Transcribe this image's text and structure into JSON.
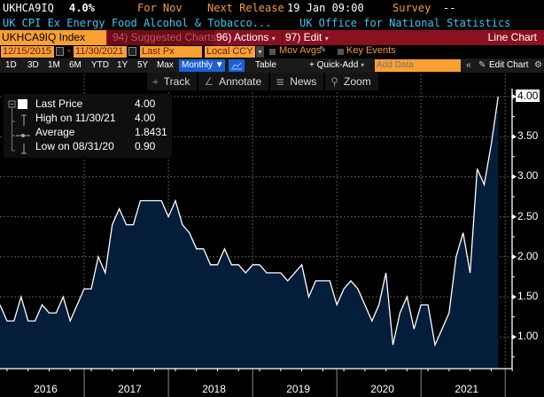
{
  "header": {
    "ticker": "UKHCA9IQ",
    "last_value": "4.0%",
    "period": "For Nov",
    "next_release_label": "Next Release",
    "next_release_value": "19 Jan 09:00",
    "survey_label": "Survey",
    "survey_value": "--",
    "description": "UK CPI Ex Energy Food Alcohol & Tobacco...",
    "source": "UK Office for National Statistics"
  },
  "menubar": {
    "security": "UKHCA9IQ Index",
    "suggested": "94) Suggested Charts",
    "actions": "96) Actions",
    "edit": "97) Edit",
    "chart_type": "Line Chart"
  },
  "settings": {
    "start_date": "12/15/2015",
    "dash": "-",
    "end_date": "11/30/2021",
    "field": "Last Px",
    "currency": "Local CCY",
    "mov_avgs": "Mov Avgs",
    "key_events": "Key Events"
  },
  "range_bar": {
    "ranges": [
      "1D",
      "3D",
      "1M",
      "6M",
      "YTD",
      "1Y",
      "5Y",
      "Max"
    ],
    "frequency": "Monthly",
    "table": "Table",
    "quick_add": "+ Quick-Add",
    "add_data_placeholder": "Add Data",
    "edit_chart": "Edit Chart"
  },
  "tools": {
    "track": "Track",
    "annotate": "Annotate",
    "news": "News",
    "zoom": "Zoom"
  },
  "legend": {
    "last_price_label": "Last Price",
    "last_price_value": "4.00",
    "high_label": "High on 11/30/21",
    "high_value": "4.00",
    "average_label": "Average",
    "average_value": "1.8431",
    "low_label": "Low on 08/31/20",
    "low_value": "0.90"
  },
  "colors": {
    "area_fill": "#031d3a",
    "line": "#ffffff",
    "accent_orange": "#f8a032",
    "menu_red": "#8b1020",
    "monthly_blue": "#1f5fd6"
  },
  "chart_data": {
    "type": "area",
    "title": "UK CPI Ex Energy Food Alcohol & Tobacco",
    "x_label": "",
    "y_label": "",
    "x_start": "2015-12",
    "x_end": "2021-11",
    "frequency": "monthly",
    "x_tick_labels": [
      "2016",
      "2017",
      "2018",
      "2019",
      "2020",
      "2021"
    ],
    "y_tick_labels": [
      "1.00",
      "1.50",
      "2.00",
      "2.50",
      "3.00",
      "3.50",
      "4.00"
    ],
    "ylim": [
      0.7,
      4.15
    ],
    "grid": true,
    "legend_position": "top-left",
    "series": [
      {
        "name": "Last Price",
        "values": [
          1.4,
          1.2,
          1.2,
          1.5,
          1.2,
          1.2,
          1.4,
          1.3,
          1.3,
          1.5,
          1.2,
          1.4,
          1.6,
          1.6,
          2.0,
          1.8,
          2.4,
          2.6,
          2.4,
          2.4,
          2.7,
          2.7,
          2.7,
          2.7,
          2.5,
          2.7,
          2.4,
          2.3,
          2.1,
          2.1,
          1.9,
          1.9,
          2.1,
          1.9,
          1.9,
          1.8,
          1.9,
          1.9,
          1.8,
          1.8,
          1.8,
          1.7,
          1.8,
          1.9,
          1.5,
          1.7,
          1.7,
          1.7,
          1.4,
          1.6,
          1.7,
          1.6,
          1.4,
          1.2,
          1.4,
          1.8,
          0.9,
          1.3,
          1.5,
          1.1,
          1.4,
          1.4,
          0.9,
          1.1,
          1.3,
          2.0,
          2.3,
          1.8,
          3.1,
          2.9,
          3.4,
          4.0
        ]
      }
    ],
    "last_value_label": "4.00"
  }
}
